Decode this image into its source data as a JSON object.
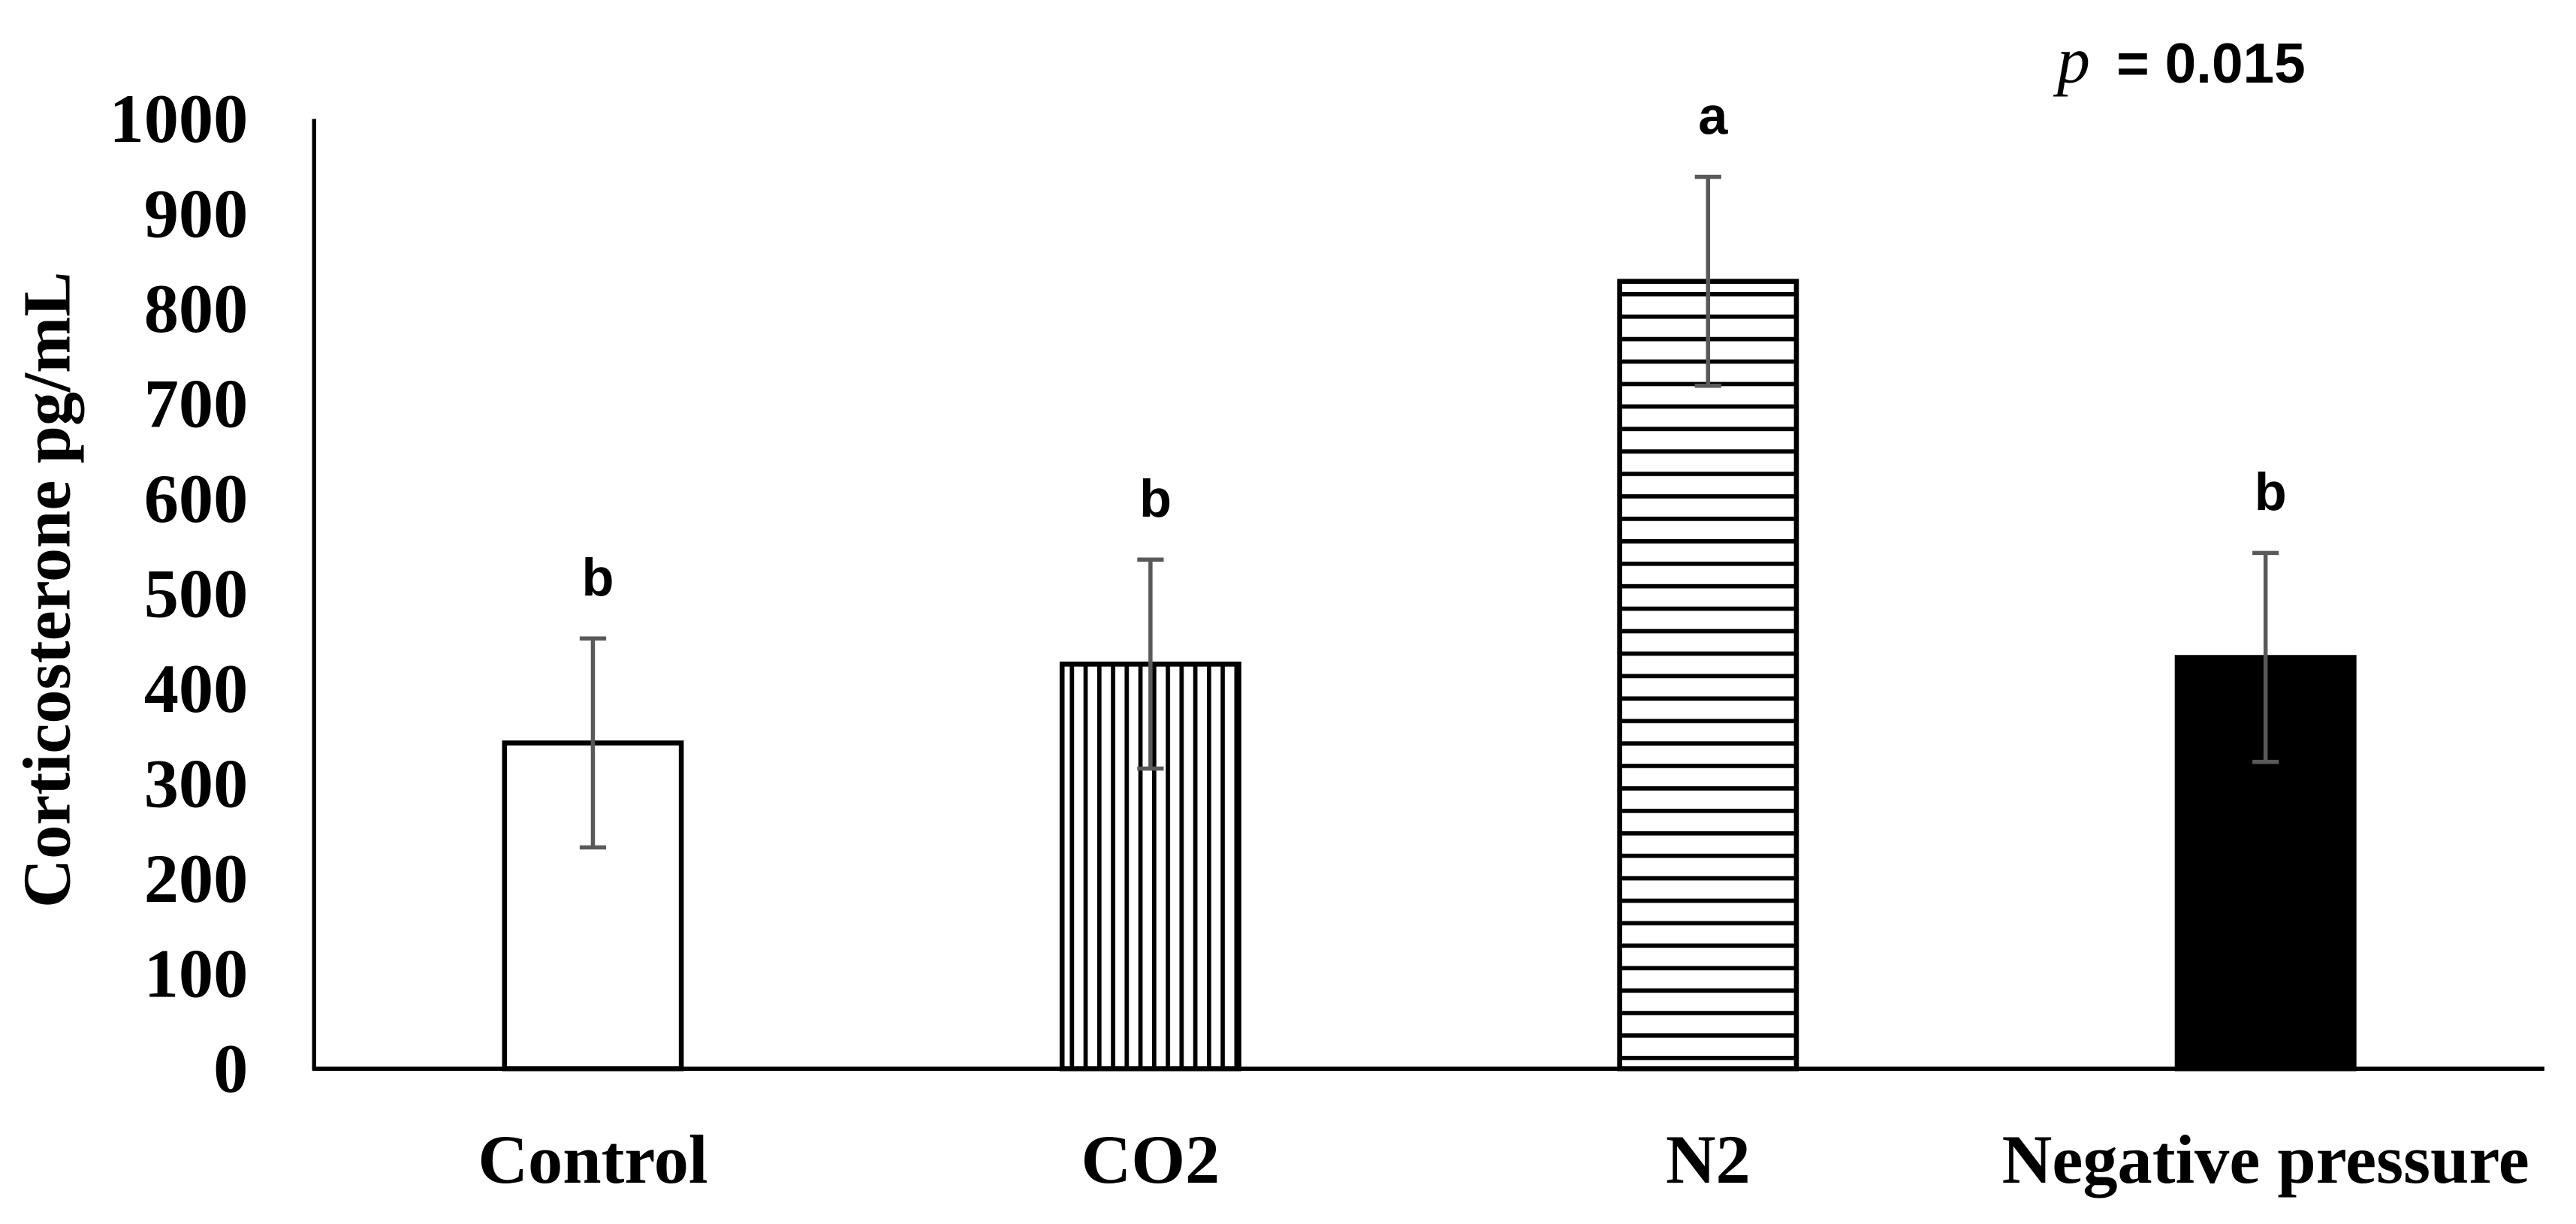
{
  "chart_data": {
    "type": "bar",
    "categories": [
      "Control",
      "CO2",
      "N2",
      "Negative pressure"
    ],
    "values": [
      343,
      426,
      829,
      433
    ],
    "errors": [
      110,
      110,
      110,
      110
    ],
    "significance_letters": [
      "b",
      "b",
      "a",
      "b"
    ],
    "fills": [
      "white",
      "vertical-stripes",
      "horizontal-stripes",
      "black"
    ],
    "ylabel": "Corticosterone pg/mL",
    "ylim": [
      0,
      1000
    ],
    "yticks": [
      0,
      100,
      200,
      300,
      400,
      500,
      600,
      700,
      800,
      900,
      1000
    ],
    "grid": false,
    "legend": "none",
    "annotation": {
      "italic": "p",
      "text": "= 0.015"
    }
  },
  "colors": {
    "background": "#ffffff",
    "axis": "#000000",
    "bar_outline": "#000000",
    "bar_solid": "#000000",
    "bar_empty": "#ffffff",
    "error_bar": "#595959"
  }
}
